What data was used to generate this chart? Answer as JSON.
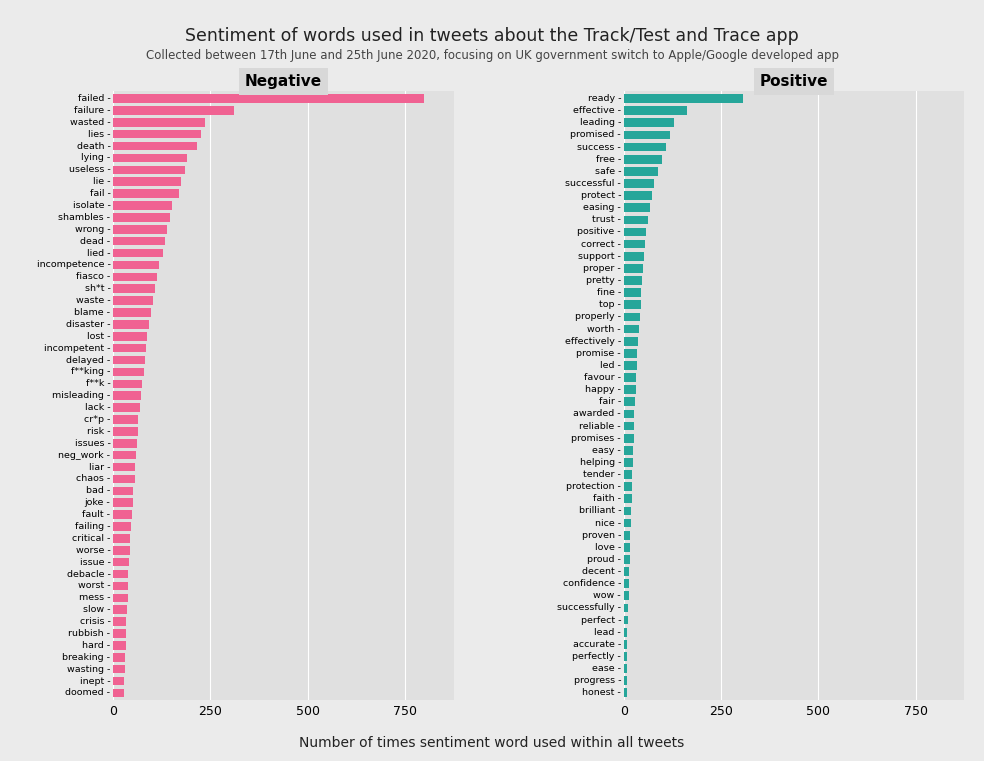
{
  "title": "Sentiment of words used in tweets about the Track/Test and Trace app",
  "subtitle": "Collected between 17th June and 25th June 2020, focusing on UK government switch to Apple/Google developed app",
  "xlabel": "Number of times sentiment word used within all tweets",
  "neg_words": [
    "failed",
    "failure",
    "wasted",
    "lies",
    "death",
    "lying",
    "useless",
    "lie",
    "fail",
    "isolate",
    "shambles",
    "wrong",
    "dead",
    "lied",
    "incompetence",
    "fiasco",
    "sh*t",
    "waste",
    "blame",
    "disaster",
    "lost",
    "incompetent",
    "delayed",
    "f**king",
    "f**k",
    "misleading",
    "lack",
    "cr*p",
    "risk",
    "issues",
    "neg_work",
    "liar",
    "chaos",
    "bad",
    "joke",
    "fault",
    "failing",
    "critical",
    "worse",
    "issue",
    "debacle",
    "worst",
    "mess",
    "slow",
    "crisis",
    "rubbish",
    "hard",
    "breaking",
    "wasting",
    "inept",
    "doomed"
  ],
  "neg_values": [
    800,
    310,
    235,
    225,
    215,
    190,
    185,
    175,
    170,
    150,
    145,
    138,
    132,
    128,
    118,
    112,
    108,
    102,
    98,
    93,
    88,
    85,
    82,
    78,
    75,
    72,
    68,
    65,
    63,
    61,
    59,
    57,
    55,
    52,
    50,
    48,
    46,
    44,
    42,
    40,
    39,
    38,
    37,
    35,
    34,
    33,
    32,
    31,
    30,
    29,
    28
  ],
  "pos_words": [
    "ready",
    "effective",
    "leading",
    "promised",
    "success",
    "free",
    "safe",
    "successful",
    "protect",
    "easing",
    "trust",
    "positive",
    "correct",
    "support",
    "proper",
    "pretty",
    "fine",
    "top",
    "properly",
    "worth",
    "effectively",
    "promise",
    "led",
    "favour",
    "happy",
    "fair",
    "awarded",
    "reliable",
    "promises",
    "easy",
    "helping",
    "tender",
    "protection",
    "faith",
    "brilliant",
    "nice",
    "proven",
    "love",
    "proud",
    "decent",
    "confidence",
    "wow",
    "successfully",
    "perfect",
    "lead",
    "accurate",
    "perfectly",
    "ease",
    "progress",
    "honest"
  ],
  "pos_values": [
    305,
    162,
    128,
    118,
    108,
    98,
    88,
    78,
    73,
    68,
    63,
    58,
    55,
    52,
    49,
    47,
    45,
    43,
    41,
    39,
    37,
    35,
    33,
    31,
    30,
    29,
    27,
    26,
    25,
    24,
    23,
    22,
    21,
    20,
    19,
    18,
    17,
    16,
    15,
    14,
    13,
    12,
    11,
    10,
    9,
    9,
    8,
    8,
    7,
    7
  ],
  "neg_color": "#F06292",
  "pos_color": "#26A69A",
  "bg_color": "#EBEBEB",
  "panel_bg": "#E0E0E0",
  "header_bg": "#D8D8D8",
  "grid_color": "white"
}
